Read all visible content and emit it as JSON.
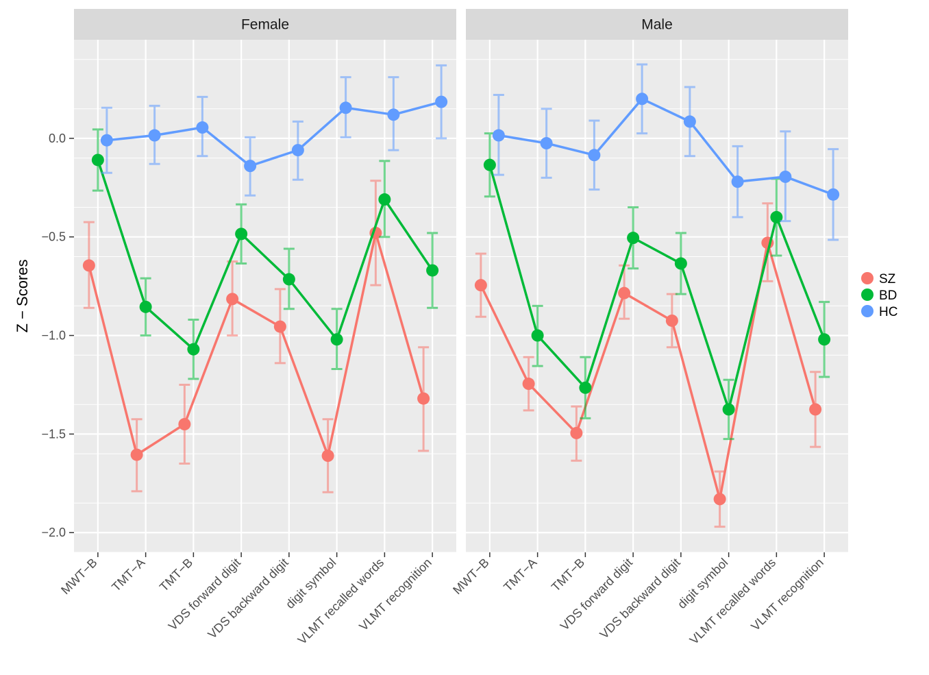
{
  "chart_data": {
    "type": "line",
    "ylabel": "Z − Scores",
    "xlabel": "",
    "ylim": [
      -2.1,
      0.5
    ],
    "yticks": [
      0.0,
      -0.5,
      -1.0,
      -1.5,
      -2.0
    ],
    "ytick_labels": [
      "0.0",
      "−0.5",
      "−1.0",
      "−1.5",
      "−2.0"
    ],
    "grid": true,
    "legend_position": "right",
    "categories": [
      "MWT−B",
      "TMT−A",
      "TMT−B",
      "VDS forward digit",
      "VDS backward digit",
      "digit symbol",
      "VLMT recalled words",
      "VLMT recognition"
    ],
    "legend": [
      {
        "label": "SZ",
        "color": "#F8766D"
      },
      {
        "label": "BD",
        "color": "#00BA38"
      },
      {
        "label": "HC",
        "color": "#619CFF"
      }
    ],
    "panels": [
      {
        "title": "Female",
        "series": [
          {
            "name": "SZ",
            "color": "#F8766D",
            "values": [
              -0.645,
              -1.605,
              -1.45,
              -0.815,
              -0.955,
              -1.61,
              -0.48,
              -1.32
            ],
            "lower": [
              -0.86,
              -1.79,
              -1.65,
              -1.0,
              -1.14,
              -1.795,
              -0.745,
              -1.585
            ],
            "upper": [
              -0.425,
              -1.425,
              -1.25,
              -0.625,
              -0.765,
              -1.425,
              -0.215,
              -1.06
            ]
          },
          {
            "name": "BD",
            "color": "#00BA38",
            "values": [
              -0.11,
              -0.855,
              -1.07,
              -0.485,
              -0.715,
              -1.02,
              -0.31,
              -0.67
            ],
            "lower": [
              -0.265,
              -1.0,
              -1.22,
              -0.635,
              -0.865,
              -1.17,
              -0.5,
              -0.86
            ],
            "upper": [
              0.045,
              -0.71,
              -0.92,
              -0.335,
              -0.56,
              -0.865,
              -0.115,
              -0.48
            ]
          },
          {
            "name": "HC",
            "color": "#619CFF",
            "values": [
              -0.01,
              0.015,
              0.055,
              -0.14,
              -0.06,
              0.155,
              0.12,
              0.185
            ],
            "lower": [
              -0.175,
              -0.13,
              -0.09,
              -0.29,
              -0.21,
              0.005,
              -0.06,
              0.0
            ],
            "upper": [
              0.155,
              0.165,
              0.21,
              0.005,
              0.085,
              0.31,
              0.31,
              0.37
            ]
          }
        ]
      },
      {
        "title": "Male",
        "series": [
          {
            "name": "SZ",
            "color": "#F8766D",
            "values": [
              -0.745,
              -1.245,
              -1.495,
              -0.785,
              -0.925,
              -1.83,
              -0.53,
              -1.375
            ],
            "lower": [
              -0.905,
              -1.38,
              -1.635,
              -0.915,
              -1.06,
              -1.97,
              -0.725,
              -1.565
            ],
            "upper": [
              -0.585,
              -1.11,
              -1.36,
              -0.645,
              -0.79,
              -1.69,
              -0.33,
              -1.185
            ]
          },
          {
            "name": "BD",
            "color": "#00BA38",
            "values": [
              -0.135,
              -1.0,
              -1.265,
              -0.505,
              -0.635,
              -1.375,
              -0.4,
              -1.02
            ],
            "lower": [
              -0.295,
              -1.155,
              -1.42,
              -0.66,
              -0.79,
              -1.525,
              -0.595,
              -1.21
            ],
            "upper": [
              0.025,
              -0.85,
              -1.11,
              -0.35,
              -0.48,
              -1.225,
              -0.205,
              -0.83
            ]
          },
          {
            "name": "HC",
            "color": "#619CFF",
            "values": [
              0.015,
              -0.025,
              -0.085,
              0.2,
              0.085,
              -0.22,
              -0.195,
              -0.285
            ],
            "lower": [
              -0.185,
              -0.2,
              -0.26,
              0.025,
              -0.09,
              -0.4,
              -0.42,
              -0.515
            ],
            "upper": [
              0.22,
              0.15,
              0.09,
              0.375,
              0.26,
              -0.04,
              0.035,
              -0.055
            ]
          }
        ]
      }
    ]
  }
}
